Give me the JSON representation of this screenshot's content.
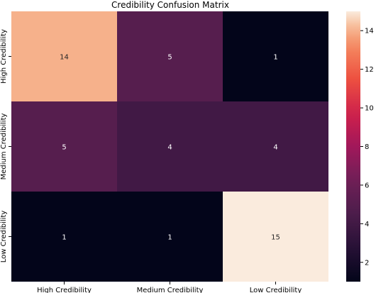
{
  "chart_data": {
    "type": "heatmap",
    "title": "Credibility Confusion Matrix",
    "xlabel": "",
    "ylabel": "",
    "x_categories": [
      "High Credibility",
      "Medium Credibility",
      "Low Credibility"
    ],
    "y_categories": [
      "High Credibility",
      "Medium Credibility",
      "Low Credibility"
    ],
    "values": [
      [
        14,
        5,
        1
      ],
      [
        5,
        4,
        4
      ],
      [
        1,
        1,
        15
      ]
    ],
    "colorbar": {
      "vmin": 1,
      "vmax": 15,
      "ticks": [
        2,
        4,
        6,
        8,
        10,
        12,
        14
      ],
      "colormap": "rocket"
    },
    "annotations_color_light": "#ffffff",
    "annotations_color_dark": "#262626",
    "grid": false
  }
}
